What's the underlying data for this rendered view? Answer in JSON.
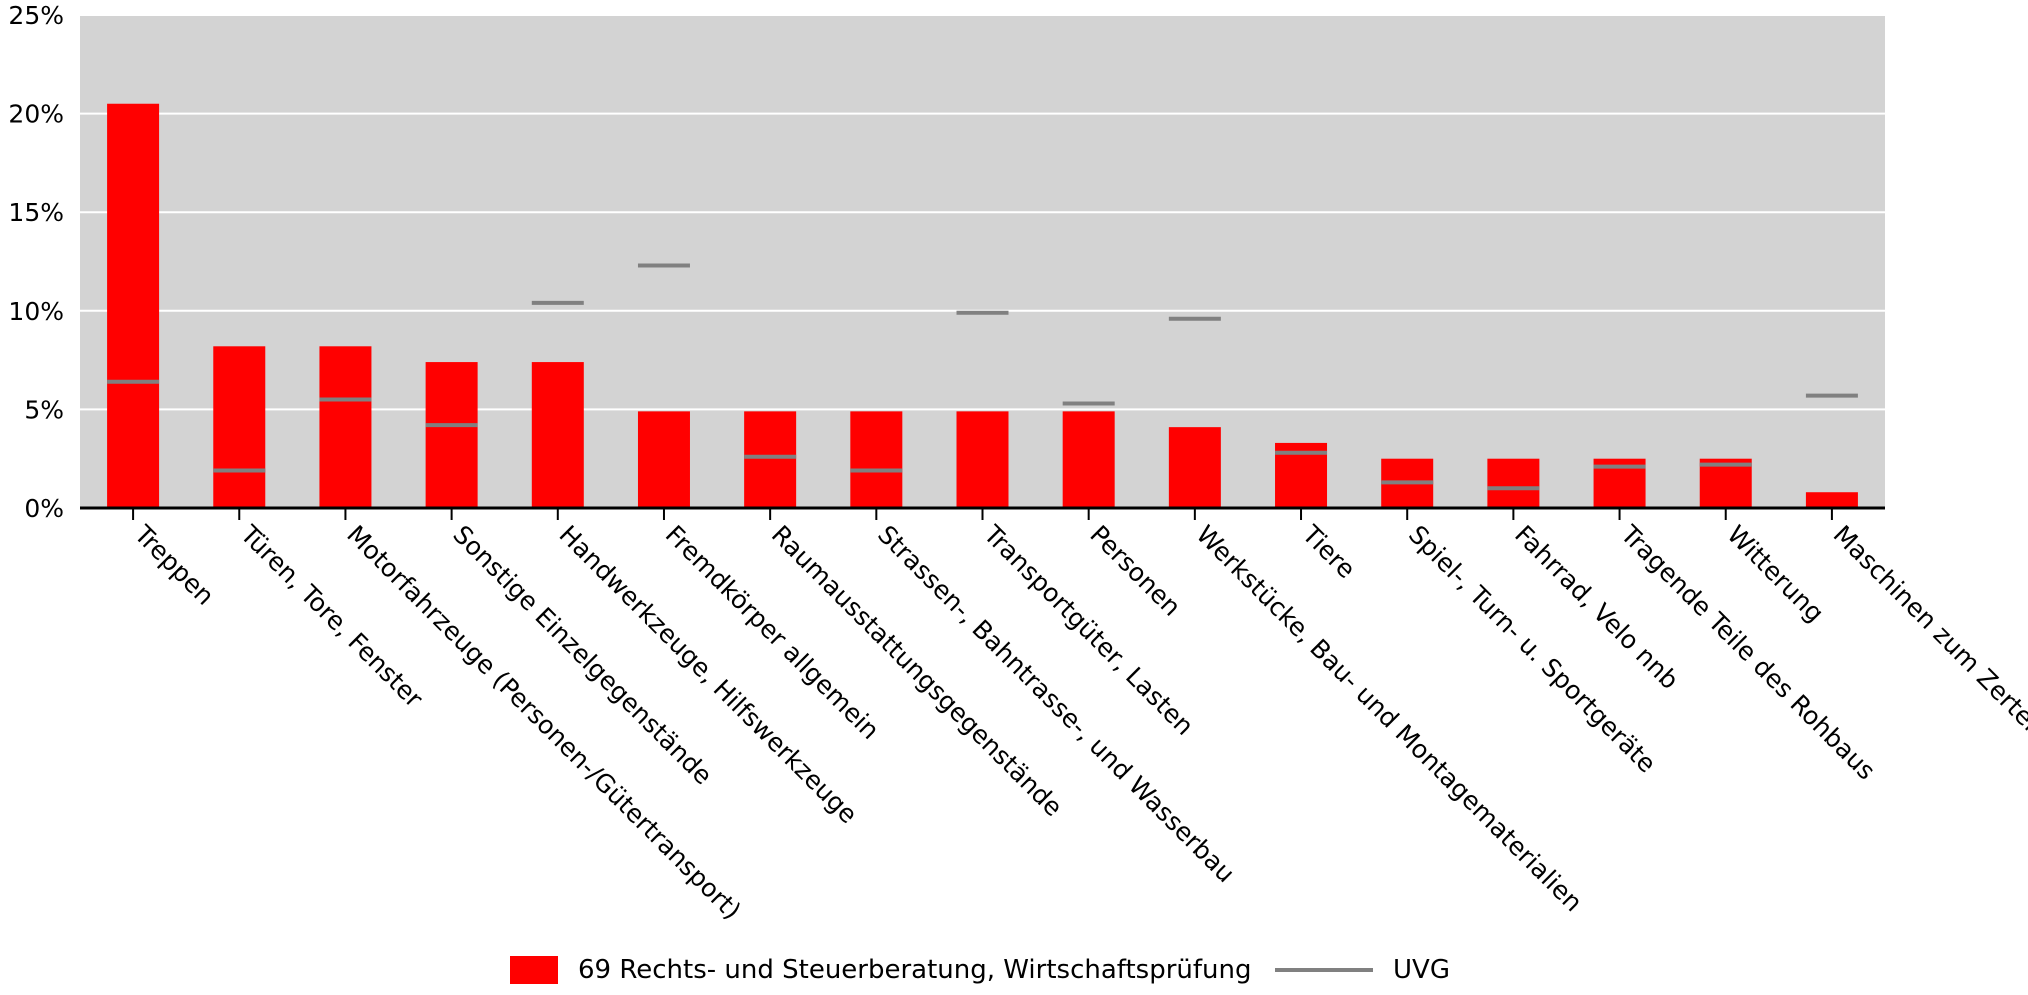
{
  "chart_data": {
    "type": "bar",
    "title": "",
    "xlabel": "",
    "ylabel": "",
    "ylim": [
      0,
      25
    ],
    "y_ticks": [
      "0%",
      "5%",
      "10%",
      "15%",
      "20%",
      "25%"
    ],
    "y_unit": "%",
    "grid": true,
    "legend_position": "bottom",
    "categories": [
      "Treppen",
      "Türen, Tore, Fenster",
      "Motorfahrzeuge (Personen-/Gütertransport)",
      "Sonstige Einzelgegenstände",
      "Handwerkzeuge, Hilfswerkzeuge",
      "Fremdkörper allgemein",
      "Raumausstattungsgegenstände",
      "Strassen-, Bahntrasse-, und Wasserbau",
      "Transportgüter, Lasten",
      "Personen",
      "Werkstücke, Bau- und Montagematerialien",
      "Tiere",
      "Spiel-, Turn- u. Sportgeräte",
      "Fahrrad, Velo nnb",
      "Tragende Teile des Rohbaus",
      "Witterung",
      "Maschinen zum Zerteilen"
    ],
    "series": [
      {
        "name": "69 Rechts- und Steuerberatung, Wirtschaftsprüfung",
        "kind": "bar",
        "color": "#ff0000",
        "values": [
          20.5,
          8.2,
          8.2,
          7.4,
          7.4,
          4.9,
          4.9,
          4.9,
          4.9,
          4.9,
          4.1,
          3.3,
          2.5,
          2.5,
          2.5,
          2.5,
          0.8
        ]
      },
      {
        "name": "UVG",
        "kind": "marker",
        "color": "#808080",
        "values": [
          6.4,
          1.9,
          5.5,
          4.2,
          10.4,
          12.3,
          2.6,
          1.9,
          9.9,
          5.3,
          9.6,
          2.8,
          1.3,
          1.0,
          2.1,
          2.2,
          5.7
        ]
      }
    ],
    "colors": {
      "plot_background": "#d3d3d3",
      "gridline": "#ffffff",
      "axis": "#000000"
    }
  }
}
